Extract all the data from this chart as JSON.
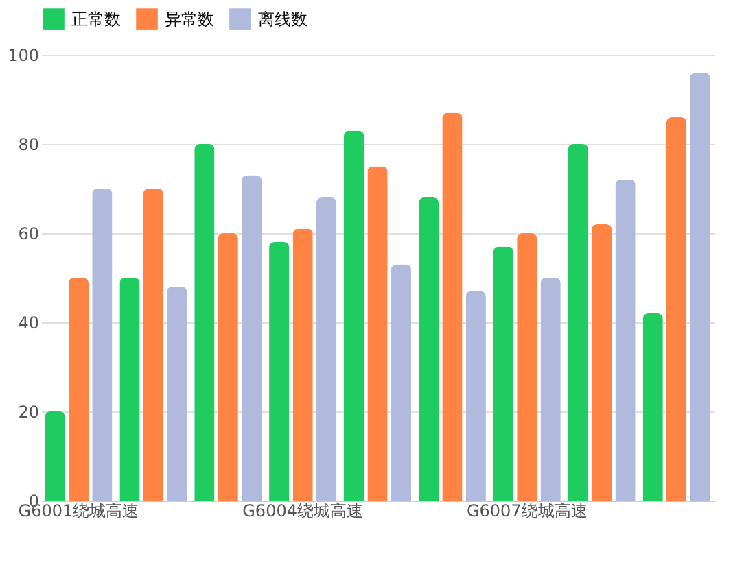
{
  "chart_data": {
    "type": "bar",
    "categories": [
      "G6001绕城高速",
      null,
      null,
      "G6004绕城高速",
      null,
      null,
      "G6007绕城高速",
      null,
      null
    ],
    "series": [
      {
        "name": "正常数",
        "color": "#1fcc5f",
        "values": [
          20,
          50,
          80,
          58,
          83,
          68,
          57,
          80,
          42
        ]
      },
      {
        "name": "异常数",
        "color": "#ff8443",
        "values": [
          50,
          70,
          60,
          61,
          75,
          87,
          60,
          62,
          86
        ]
      },
      {
        "name": "离线数",
        "color": "#afbadc",
        "values": [
          70,
          48,
          73,
          68,
          53,
          47,
          50,
          72,
          96
        ]
      }
    ],
    "ylim": [
      0,
      100
    ],
    "yticks": [
      0,
      20,
      40,
      60,
      80,
      100
    ],
    "grid": "y",
    "legend": "top"
  }
}
